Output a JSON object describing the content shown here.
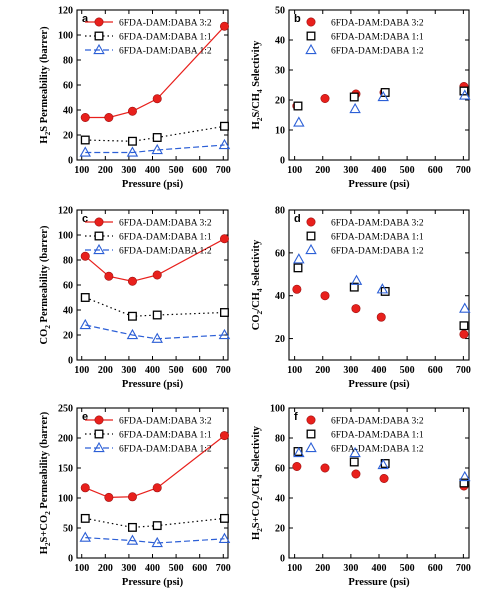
{
  "colors": {
    "s1": "#e8201c",
    "s2": "#000000",
    "s3": "#2c5fd6"
  },
  "chart_data": [
    {
      "panel": "a",
      "type": "line",
      "xlabel": "Pressure (psi)",
      "ylabel_parts": [
        [
          "H",
          "n"
        ],
        [
          "2",
          "sub"
        ],
        [
          "S Permeability (barrer)",
          "n"
        ]
      ],
      "xlim": [
        80,
        720
      ],
      "ylim": [
        0,
        120
      ],
      "xticks": [
        "100",
        "200",
        "300",
        "400",
        "500",
        "600",
        "700"
      ],
      "yticks": [
        "0",
        "20",
        "40",
        "60",
        "80",
        "100",
        "120"
      ],
      "legend_position": "top-right",
      "series": [
        {
          "name": "6FDA-DAM:DABA 3:2",
          "marker": "circle",
          "line": "solid",
          "x": [
            115,
            215,
            315,
            420,
            705
          ],
          "y": [
            34,
            34,
            39,
            49,
            107
          ]
        },
        {
          "name": "6FDA-DAM:DABA 1:1",
          "marker": "square",
          "line": "dotted",
          "x": [
            115,
            315,
            420,
            705
          ],
          "y": [
            16,
            15,
            18,
            27
          ]
        },
        {
          "name": "6FDA-DAM:DABA 1:2",
          "marker": "triangle",
          "line": "dashed",
          "x": [
            115,
            315,
            420,
            705
          ],
          "y": [
            6,
            6,
            8,
            12
          ]
        }
      ]
    },
    {
      "panel": "b",
      "type": "scatter",
      "xlabel": "Pressure (psi)",
      "ylabel_parts": [
        [
          "H",
          "n"
        ],
        [
          "2",
          "sub"
        ],
        [
          "S/CH",
          "n"
        ],
        [
          "4",
          "sub"
        ],
        [
          " Selectivity",
          "n"
        ]
      ],
      "xlim": [
        80,
        720
      ],
      "ylim": [
        0,
        50
      ],
      "xticks": [
        "100",
        "200",
        "300",
        "400",
        "500",
        "600",
        "700"
      ],
      "yticks": [
        "0",
        "10",
        "20",
        "30",
        "40",
        "50"
      ],
      "legend_position": "top-right",
      "series": [
        {
          "name": "6FDA-DAM:DABA 3:2",
          "marker": "circle",
          "line": "none",
          "x": [
            108,
            208,
            318,
            418,
            702
          ],
          "y": [
            18,
            20.5,
            22,
            22.5,
            24.5
          ]
        },
        {
          "name": "6FDA-DAM:DABA 1:1",
          "marker": "square",
          "line": "none",
          "x": [
            112,
            312,
            422,
            702
          ],
          "y": [
            18,
            21,
            22.5,
            23
          ]
        },
        {
          "name": "6FDA-DAM:DABA 1:2",
          "marker": "triangle",
          "line": "none",
          "x": [
            115,
            315,
            415,
            705
          ],
          "y": [
            12.5,
            17,
            21,
            21.5
          ]
        }
      ]
    },
    {
      "panel": "c",
      "type": "line",
      "xlabel": "Pressure (psi)",
      "ylabel_parts": [
        [
          "CO",
          "n"
        ],
        [
          "2",
          "sub"
        ],
        [
          " Permeability (barrer)",
          "n"
        ]
      ],
      "xlim": [
        80,
        720
      ],
      "ylim": [
        0,
        120
      ],
      "xticks": [
        "100",
        "200",
        "300",
        "400",
        "500",
        "600",
        "700"
      ],
      "yticks": [
        "0",
        "20",
        "40",
        "60",
        "80",
        "100",
        "120"
      ],
      "legend_position": "top-right",
      "series": [
        {
          "name": "6FDA-DAM:DABA 3:2",
          "marker": "circle",
          "line": "solid",
          "x": [
            115,
            215,
            315,
            420,
            705
          ],
          "y": [
            83,
            67,
            63,
            68,
            97
          ]
        },
        {
          "name": "6FDA-DAM:DABA 1:1",
          "marker": "square",
          "line": "dotted",
          "x": [
            115,
            315,
            420,
            705
          ],
          "y": [
            50,
            35,
            36,
            38
          ]
        },
        {
          "name": "6FDA-DAM:DABA 1:2",
          "marker": "triangle",
          "line": "dashed",
          "x": [
            115,
            315,
            420,
            705
          ],
          "y": [
            28,
            20,
            17,
            20
          ]
        }
      ]
    },
    {
      "panel": "d",
      "type": "scatter",
      "xlabel": "Pressure (psi)",
      "ylabel_parts": [
        [
          "CO",
          "n"
        ],
        [
          "2",
          "sub"
        ],
        [
          "/CH",
          "n"
        ],
        [
          "4",
          "sub"
        ],
        [
          " Selectivity",
          "n"
        ]
      ],
      "xlim": [
        80,
        720
      ],
      "ylim": [
        10,
        80
      ],
      "xticks": [
        "100",
        "200",
        "300",
        "400",
        "500",
        "600",
        "700"
      ],
      "yticks": [
        "20",
        "40",
        "60",
        "80"
      ],
      "legend_position": "top-right",
      "series": [
        {
          "name": "6FDA-DAM:DABA 3:2",
          "marker": "circle",
          "line": "none",
          "x": [
            108,
            208,
            318,
            408,
            702
          ],
          "y": [
            43,
            40,
            34,
            30,
            22
          ]
        },
        {
          "name": "6FDA-DAM:DABA 1:1",
          "marker": "square",
          "line": "none",
          "x": [
            112,
            312,
            422,
            702
          ],
          "y": [
            53,
            44,
            42,
            26
          ]
        },
        {
          "name": "6FDA-DAM:DABA 1:2",
          "marker": "triangle",
          "line": "none",
          "x": [
            115,
            320,
            412,
            705
          ],
          "y": [
            57,
            47,
            43,
            34
          ]
        }
      ]
    },
    {
      "panel": "e",
      "type": "line",
      "xlabel": "Pressure (psi)",
      "ylabel_parts": [
        [
          "H",
          "n"
        ],
        [
          "2",
          "sub"
        ],
        [
          "S+CO",
          "n"
        ],
        [
          "2",
          "sub"
        ],
        [
          " Permeability (barrer)",
          "n"
        ]
      ],
      "xlim": [
        80,
        720
      ],
      "ylim": [
        0,
        250
      ],
      "xticks": [
        "100",
        "200",
        "300",
        "400",
        "500",
        "600",
        "700"
      ],
      "yticks": [
        "0",
        "50",
        "100",
        "150",
        "200",
        "250"
      ],
      "legend_position": "top-right",
      "series": [
        {
          "name": "6FDA-DAM:DABA 3:2",
          "marker": "circle",
          "line": "solid",
          "x": [
            115,
            215,
            315,
            420,
            705
          ],
          "y": [
            117,
            101,
            102,
            117,
            204
          ]
        },
        {
          "name": "6FDA-DAM:DABA 1:1",
          "marker": "square",
          "line": "dotted",
          "x": [
            115,
            315,
            420,
            705
          ],
          "y": [
            66,
            51,
            54,
            66
          ]
        },
        {
          "name": "6FDA-DAM:DABA 1:2",
          "marker": "triangle",
          "line": "dashed",
          "x": [
            115,
            315,
            420,
            705
          ],
          "y": [
            34,
            29,
            25,
            32
          ]
        }
      ]
    },
    {
      "panel": "f",
      "type": "scatter",
      "xlabel": "Pressure (psi)",
      "ylabel_parts": [
        [
          "H",
          "n"
        ],
        [
          "2",
          "sub"
        ],
        [
          "S+CO",
          "n"
        ],
        [
          "2",
          "sub"
        ],
        [
          "/CH",
          "n"
        ],
        [
          "4",
          "sub"
        ],
        [
          " Selectivity",
          "n"
        ]
      ],
      "xlim": [
        80,
        720
      ],
      "ylim": [
        0,
        100
      ],
      "xticks": [
        "100",
        "200",
        "300",
        "400",
        "500",
        "600",
        "700"
      ],
      "yticks": [
        "0",
        "20",
        "40",
        "60",
        "80",
        "100"
      ],
      "legend_position": "top-right",
      "series": [
        {
          "name": "6FDA-DAM:DABA 3:2",
          "marker": "circle",
          "line": "none",
          "x": [
            108,
            208,
            318,
            418,
            702
          ],
          "y": [
            61,
            60,
            56,
            53,
            48
          ]
        },
        {
          "name": "6FDA-DAM:DABA 1:1",
          "marker": "square",
          "line": "none",
          "x": [
            112,
            312,
            422,
            702
          ],
          "y": [
            71,
            64,
            63,
            50
          ]
        },
        {
          "name": "6FDA-DAM:DABA 1:2",
          "marker": "triangle",
          "line": "none",
          "x": [
            115,
            315,
            415,
            705
          ],
          "y": [
            70,
            70,
            62,
            54
          ]
        }
      ]
    }
  ]
}
